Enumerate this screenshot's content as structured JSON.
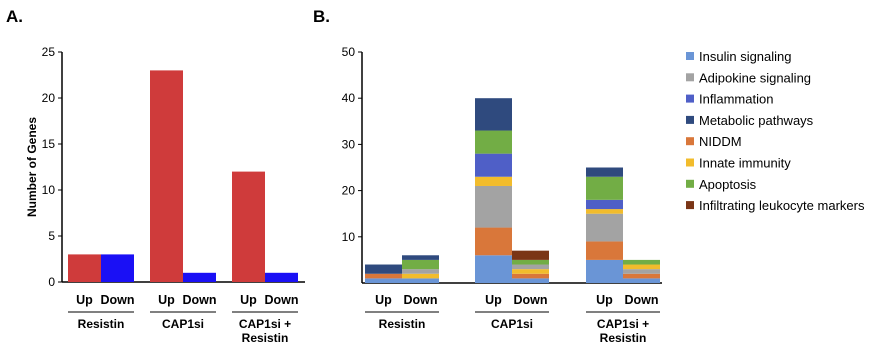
{
  "panels": {
    "a_label": "A.",
    "b_label": "B."
  },
  "chart_data": [
    {
      "type": "bar",
      "panel": "A.",
      "ylabel": "Number of Genes",
      "ylim": [
        0,
        25
      ],
      "yticks": [
        "0",
        "5",
        "10",
        "15",
        "20",
        "25"
      ],
      "groups": [
        {
          "label": [
            "Resistin"
          ],
          "bars": [
            {
              "sub": "Up",
              "value": 3
            },
            {
              "sub": "Down",
              "value": 3
            }
          ]
        },
        {
          "label": [
            "CAP1si"
          ],
          "bars": [
            {
              "sub": "Up",
              "value": 23
            },
            {
              "sub": "Down",
              "value": 1
            }
          ]
        },
        {
          "label": [
            "CAP1si +",
            "Resistin"
          ],
          "bars": [
            {
              "sub": "Up",
              "value": 12
            },
            {
              "sub": "Down",
              "value": 1
            }
          ]
        }
      ],
      "colors": {
        "Up": "#cf3b3b",
        "Down": "#1a10f5"
      },
      "grid": false
    },
    {
      "type": "bar",
      "stacked": true,
      "panel": "B.",
      "ylim": [
        0,
        50
      ],
      "yticks": [
        "10",
        "20",
        "30",
        "40",
        "50"
      ],
      "legend_position": "right",
      "series": [
        {
          "name": "Insulin signaling",
          "color": "#6a95d6"
        },
        {
          "name": "Adipokine signaling",
          "color": "#a3a3a3"
        },
        {
          "name": "Inflammation",
          "color": "#4f5fc7"
        },
        {
          "name": "Metabolic pathways",
          "color": "#2f4a7e"
        },
        {
          "name": "NIDDM",
          "color": "#d9773a"
        },
        {
          "name": "Innate immunity",
          "color": "#f2bc2c"
        },
        {
          "name": "Apoptosis",
          "color": "#72ad45"
        },
        {
          "name": "Infiltrating leukocyte markers",
          "color": "#7a3516"
        }
      ],
      "groups": [
        {
          "label": [
            "Resistin"
          ],
          "bars": [
            {
              "sub": "Up",
              "stack": [
                {
                  "series": "Insulin signaling",
                  "value": 1
                },
                {
                  "series": "NIDDM",
                  "value": 1
                },
                {
                  "series": "Metabolic pathways",
                  "value": 2
                }
              ]
            },
            {
              "sub": "Down",
              "stack": [
                {
                  "series": "Insulin signaling",
                  "value": 1
                },
                {
                  "series": "Innate immunity",
                  "value": 1
                },
                {
                  "series": "Adipokine signaling",
                  "value": 1
                },
                {
                  "series": "Apoptosis",
                  "value": 2
                },
                {
                  "series": "Metabolic pathways",
                  "value": 1
                }
              ]
            }
          ]
        },
        {
          "label": [
            "CAP1si"
          ],
          "bars": [
            {
              "sub": "Up",
              "stack": [
                {
                  "series": "Insulin signaling",
                  "value": 6
                },
                {
                  "series": "NIDDM",
                  "value": 6
                },
                {
                  "series": "Adipokine signaling",
                  "value": 9
                },
                {
                  "series": "Innate immunity",
                  "value": 2
                },
                {
                  "series": "Inflammation",
                  "value": 5
                },
                {
                  "series": "Apoptosis",
                  "value": 5
                },
                {
                  "series": "Metabolic pathways",
                  "value": 7
                }
              ]
            },
            {
              "sub": "Down",
              "stack": [
                {
                  "series": "Insulin signaling",
                  "value": 1
                },
                {
                  "series": "NIDDM",
                  "value": 1
                },
                {
                  "series": "Innate immunity",
                  "value": 1
                },
                {
                  "series": "Adipokine signaling",
                  "value": 1
                },
                {
                  "series": "Apoptosis",
                  "value": 1
                },
                {
                  "series": "Infiltrating leukocyte markers",
                  "value": 2
                }
              ]
            }
          ]
        },
        {
          "label": [
            "CAP1si +",
            "Resistin"
          ],
          "bars": [
            {
              "sub": "Up",
              "stack": [
                {
                  "series": "Insulin signaling",
                  "value": 5
                },
                {
                  "series": "NIDDM",
                  "value": 4
                },
                {
                  "series": "Adipokine signaling",
                  "value": 6
                },
                {
                  "series": "Innate immunity",
                  "value": 1
                },
                {
                  "series": "Inflammation",
                  "value": 2
                },
                {
                  "series": "Apoptosis",
                  "value": 5
                },
                {
                  "series": "Metabolic pathways",
                  "value": 2
                }
              ]
            },
            {
              "sub": "Down",
              "stack": [
                {
                  "series": "Insulin signaling",
                  "value": 1
                },
                {
                  "series": "NIDDM",
                  "value": 1
                },
                {
                  "series": "Adipokine signaling",
                  "value": 1
                },
                {
                  "series": "Innate immunity",
                  "value": 1
                },
                {
                  "series": "Apoptosis",
                  "value": 1
                }
              ]
            }
          ]
        }
      ]
    }
  ]
}
